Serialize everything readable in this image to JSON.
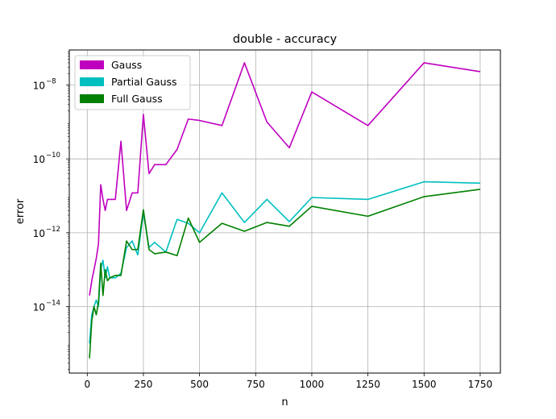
{
  "chart_data": {
    "type": "line",
    "title": "double - accuracy",
    "xlabel": "n",
    "ylabel": "error",
    "xlim": [
      -80,
      1840
    ],
    "xticks": [
      0,
      250,
      500,
      750,
      1000,
      1250,
      1500,
      1750
    ],
    "xtick_labels": [
      "0",
      "250",
      "500",
      "750",
      "1000",
      "1250",
      "1500",
      "1750"
    ],
    "yscale": "log",
    "ylim_exp": [
      -15.8,
      -7.05
    ],
    "yticks_exp": [
      -14,
      -12,
      -10,
      -8
    ],
    "ytick_labels": [
      "10",
      "10",
      "10",
      "10"
    ],
    "ytick_exponents": [
      "−14",
      "−12",
      "−10",
      "−8"
    ],
    "grid": true,
    "legend_position": "top-left",
    "series": [
      {
        "name": "Gauss",
        "color": "#bf00bf",
        "x": [
          10,
          20,
          30,
          40,
          50,
          60,
          70,
          80,
          90,
          100,
          125,
          150,
          175,
          200,
          225,
          250,
          275,
          300,
          350,
          400,
          450,
          500,
          600,
          700,
          800,
          900,
          1000,
          1250,
          1500,
          1750
        ],
        "y": [
          2e-14,
          5e-14,
          1e-13,
          2e-13,
          5e-13,
          2e-11,
          8e-12,
          4e-12,
          8e-12,
          8e-12,
          8e-12,
          3e-10,
          4e-12,
          1.2e-11,
          1.2e-11,
          1.6e-09,
          4e-11,
          7e-11,
          7e-11,
          1.8e-10,
          1.2e-09,
          1.1e-09,
          8e-10,
          4e-08,
          1e-09,
          2e-10,
          6.5e-09,
          8e-10,
          4e-08,
          2.3e-08
        ]
      },
      {
        "name": "Partial Gauss",
        "color": "#00bfbf",
        "x": [
          10,
          20,
          30,
          40,
          50,
          60,
          70,
          80,
          90,
          100,
          125,
          150,
          175,
          200,
          225,
          250,
          275,
          300,
          350,
          400,
          450,
          500,
          600,
          700,
          800,
          900,
          1000,
          1250,
          1500,
          1750
        ],
        "y": [
          1e-15,
          6e-15,
          1e-14,
          1.5e-14,
          1e-14,
          1e-13,
          1.8e-13,
          6e-14,
          1.2e-13,
          6e-14,
          6e-14,
          8e-14,
          4e-13,
          6e-13,
          2.5e-13,
          3.5e-12,
          4e-13,
          5.5e-13,
          3e-13,
          2.3e-12,
          1.8e-12,
          1e-12,
          1.2e-11,
          1.9e-12,
          8e-12,
          2e-12,
          9e-12,
          8e-12,
          2.4e-11,
          2.2e-11
        ]
      },
      {
        "name": "Full Gauss",
        "color": "#008000",
        "x": [
          10,
          20,
          30,
          40,
          50,
          60,
          70,
          80,
          90,
          100,
          125,
          150,
          175,
          200,
          225,
          250,
          275,
          300,
          350,
          400,
          450,
          500,
          600,
          700,
          800,
          900,
          1000,
          1250,
          1500,
          1750
        ],
        "y": [
          4e-16,
          4e-15,
          1e-14,
          6e-15,
          1.3e-14,
          1.5e-13,
          2e-14,
          1e-13,
          5e-14,
          6e-14,
          7e-14,
          7e-14,
          6e-13,
          3.5e-13,
          3.5e-13,
          4.2e-12,
          3.5e-13,
          2.7e-13,
          3e-13,
          2.4e-13,
          2.5e-12,
          5.5e-13,
          1.8e-12,
          1.1e-12,
          1.9e-12,
          1.5e-12,
          5.2e-12,
          2.8e-12,
          9.5e-12,
          1.5e-11
        ]
      }
    ]
  }
}
